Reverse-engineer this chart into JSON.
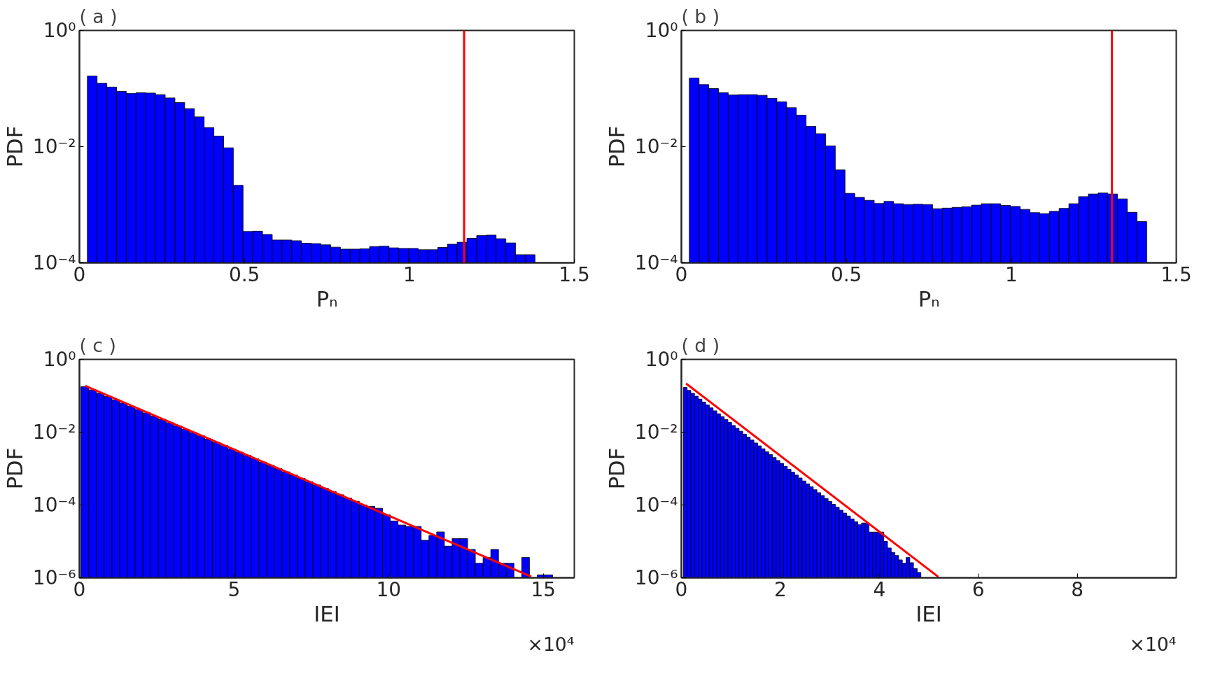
{
  "chart_data": [
    {
      "type": "histogram",
      "title": "( a )",
      "xlabel": "Pₙ",
      "ylabel": "PDF",
      "color": "#0000ff",
      "log": "y",
      "bins": [
        0.024,
        0.0535,
        0.083,
        0.1125,
        0.142,
        0.1715,
        0.201,
        0.2305,
        0.26,
        0.2895,
        0.319,
        0.3485,
        0.378,
        0.4075,
        0.437,
        0.4665,
        0.496,
        0.5255,
        0.555,
        0.5845,
        0.614,
        0.6435,
        0.673,
        0.7025,
        0.732,
        0.7615,
        0.791,
        0.8205,
        0.85,
        0.8795,
        0.909,
        0.9385,
        0.968,
        0.9975,
        1.027,
        1.0565,
        1.086,
        1.1155,
        1.145,
        1.1745,
        1.204,
        1.2335,
        1.263,
        1.2925,
        1.322,
        1.3515,
        1.381
      ],
      "values": [
        0.164,
        0.123,
        0.106,
        0.0893,
        0.0826,
        0.0848,
        0.0837,
        0.0785,
        0.069,
        0.0575,
        0.0451,
        0.0326,
        0.0213,
        0.0152,
        0.00955,
        0.00216,
        0.000346,
        0.00035,
        0.000308,
        0.000247,
        0.000247,
        0.00024,
        0.000217,
        0.000214,
        0.000204,
        0.000186,
        0.000172,
        0.000172,
        0.000174,
        0.000191,
        0.000193,
        0.000181,
        0.000177,
        0.000177,
        0.000168,
        0.000168,
        0.000184,
        0.000209,
        0.000226,
        0.000264,
        0.000296,
        0.0003,
        0.00026,
        0.00022,
        0.000138,
        0.000138
      ],
      "xlim": [
        0,
        1.5
      ],
      "xticks": [
        0,
        0.5,
        1,
        1.5
      ],
      "ylim": [
        0.0001,
        1
      ],
      "yticks": [
        {
          "value": 0.0001,
          "label": "10⁻⁴"
        },
        {
          "value": 0.01,
          "label": "10⁻²"
        },
        {
          "value": 1,
          "label": "10⁰"
        }
      ],
      "ref_lines": [
        {
          "axis": "x",
          "value": 1.166,
          "color": "#ff0000"
        }
      ]
    },
    {
      "type": "histogram",
      "title": "( b )",
      "xlabel": "Pₙ",
      "ylabel": "PDF",
      "color": "#0000ff",
      "log": "y",
      "bins": [
        0.024,
        0.0535,
        0.083,
        0.1125,
        0.142,
        0.1715,
        0.201,
        0.2305,
        0.26,
        0.2895,
        0.319,
        0.3485,
        0.378,
        0.4075,
        0.437,
        0.4665,
        0.496,
        0.5255,
        0.555,
        0.5845,
        0.614,
        0.6435,
        0.673,
        0.7025,
        0.732,
        0.7615,
        0.791,
        0.8205,
        0.85,
        0.8795,
        0.909,
        0.9385,
        0.968,
        0.9975,
        1.027,
        1.0565,
        1.086,
        1.1155,
        1.145,
        1.1745,
        1.204,
        1.2335,
        1.263,
        1.2925,
        1.322,
        1.3515,
        1.381,
        1.4105
      ],
      "values": [
        0.152,
        0.117,
        0.1,
        0.0848,
        0.0775,
        0.0785,
        0.0785,
        0.0765,
        0.068,
        0.059,
        0.0468,
        0.0348,
        0.0224,
        0.0167,
        0.0103,
        0.00397,
        0.00157,
        0.00134,
        0.00119,
        0.00105,
        0.00114,
        0.00104,
        0.00101,
        0.00102,
        0.00101,
        0.000854,
        0.000875,
        0.0009,
        0.000923,
        0.000984,
        0.00104,
        0.00104,
        0.00097,
        0.000935,
        0.000832,
        0.000731,
        0.000703,
        0.000769,
        0.000865,
        0.00104,
        0.00138,
        0.00153,
        0.00159,
        0.00153,
        0.00126,
        0.000741,
        0.000515
      ],
      "xlim": [
        0,
        1.5
      ],
      "xticks": [
        0,
        0.5,
        1,
        1.5
      ],
      "ylim": [
        0.0001,
        1
      ],
      "yticks": [
        {
          "value": 0.0001,
          "label": "10⁻⁴"
        },
        {
          "value": 0.01,
          "label": "10⁻²"
        },
        {
          "value": 1,
          "label": "10⁰"
        }
      ],
      "ref_lines": [
        {
          "axis": "x",
          "value": 1.305,
          "color": "#ff0000"
        }
      ]
    },
    {
      "type": "histogram",
      "title": "( c )",
      "xlabel": "IEI",
      "ylabel": "PDF",
      "color": "#0000ff",
      "log": "y",
      "annotations": [
        "×10⁴"
      ],
      "bins": [
        0.05,
        0.3,
        0.55,
        0.8,
        1.05,
        1.3,
        1.55,
        1.8,
        2.05,
        2.3,
        2.55,
        2.8,
        3.05,
        3.3,
        3.55,
        3.8,
        4.05,
        4.3,
        4.55,
        4.8,
        5.05,
        5.3,
        5.55,
        5.8,
        6.05,
        6.3,
        6.55,
        6.8,
        7.05,
        7.3,
        7.55,
        7.8,
        8.05,
        8.3,
        8.55,
        8.8,
        9.05,
        9.3,
        9.55,
        9.8,
        10.05,
        10.3,
        10.55,
        10.8,
        11.05,
        11.3,
        11.55,
        11.8,
        12.05,
        12.3,
        12.55,
        12.8,
        13.05,
        13.3,
        13.55,
        13.8,
        14.05,
        14.3,
        14.55,
        14.8,
        15.05,
        15.3
      ],
      "values": [
        0.178,
        0.145,
        0.117,
        0.0955,
        0.0776,
        0.0631,
        0.0513,
        0.0417,
        0.0339,
        0.0275,
        0.0224,
        0.0182,
        0.0148,
        0.012,
        0.00977,
        0.00794,
        0.00646,
        0.00525,
        0.00427,
        0.00347,
        0.00282,
        0.00229,
        0.00186,
        0.00151,
        0.00123,
        0.001,
        0.000813,
        0.000661,
        0.000537,
        0.000437,
        0.000355,
        0.000288,
        0.000234,
        0.000191,
        0.000155,
        0.000126,
        0.0001,
        9.12e-05,
        8.13e-05,
        5.37e-05,
        3.63e-05,
        2.82e-05,
        2.57e-05,
        2.57e-05,
        1.07e-05,
        1.45e-05,
        1.82e-05,
        7.4e-06,
        1.2e-05,
        1.2e-05,
        6e-06,
        2.5e-06,
        3.6e-06,
        6e-06,
        2.5e-06,
        2.5e-06,
        null,
        3.6e-06,
        null,
        1.2e-06,
        1.2e-06
      ],
      "series": [
        {
          "type": "line",
          "color": "#ff0000",
          "x": [
            0.19,
            14.61
          ],
          "values": [
            0.186,
            1.07e-06
          ]
        }
      ],
      "xlim": [
        0,
        16
      ],
      "xticks": [
        0,
        5,
        10,
        15
      ],
      "ylim": [
        1e-06,
        1
      ],
      "yticks": [
        {
          "value": 1e-06,
          "label": "10⁻⁶"
        },
        {
          "value": 0.0001,
          "label": "10⁻⁴"
        },
        {
          "value": 0.01,
          "label": "10⁻²"
        },
        {
          "value": 1,
          "label": "10⁰"
        }
      ]
    },
    {
      "type": "histogram",
      "title": "( d )",
      "xlabel": "IEI",
      "ylabel": "PDF",
      "color": "#0000ff",
      "log": "y",
      "annotations": [
        "×10⁴"
      ],
      "bins": [
        0.04,
        0.115,
        0.19,
        0.265,
        0.34,
        0.415,
        0.49,
        0.565,
        0.64,
        0.715,
        0.79,
        0.865,
        0.94,
        1.015,
        1.09,
        1.165,
        1.24,
        1.315,
        1.39,
        1.465,
        1.54,
        1.615,
        1.69,
        1.765,
        1.84,
        1.915,
        1.99,
        2.065,
        2.14,
        2.215,
        2.29,
        2.365,
        2.44,
        2.515,
        2.59,
        2.665,
        2.74,
        2.815,
        2.89,
        2.965,
        3.04,
        3.115,
        3.19,
        3.265,
        3.34,
        3.415,
        3.49,
        3.565,
        3.64,
        3.715,
        3.79,
        3.865,
        3.94,
        4.015,
        4.09,
        4.165,
        4.24,
        4.315,
        4.39,
        4.465,
        4.54,
        4.615,
        4.69,
        4.765,
        4.84
      ],
      "values": [
        0.17,
        0.141,
        0.117,
        0.0975,
        0.0811,
        0.0673,
        0.056,
        0.0466,
        0.0387,
        0.0321,
        0.0267,
        0.0222,
        0.0185,
        0.0153,
        0.0128,
        0.0106,
        0.00881,
        0.00733,
        0.0061,
        0.00506,
        0.00421,
        0.0035,
        0.0029,
        0.00242,
        0.00201,
        0.00167,
        0.00139,
        0.00115,
        0.000959,
        0.000796,
        0.000662,
        0.000551,
        0.000457,
        0.00038,
        0.000316,
        0.000262,
        0.000218,
        0.000182,
        0.000151,
        0.000125,
        0.000104,
        8.67e-05,
        7.2e-05,
        5.98e-05,
        4.98e-05,
        4.13e-05,
        3.44e-05,
        2.86e-05,
        3.2e-05,
        3.2e-05,
        1.8e-05,
        1.8e-05,
        1.8e-05,
        1.8e-05,
        1e-05,
        6.6e-06,
        5e-06,
        4.1e-06,
        3.1e-06,
        2.5e-06,
        3.6e-06,
        2.6e-06,
        1.8e-06,
        1.4e-06
      ],
      "series": [
        {
          "type": "line",
          "color": "#ff0000",
          "x": [
            0.095,
            5.19
          ],
          "values": [
            0.217,
            1.06e-06
          ]
        }
      ],
      "xlim": [
        0,
        10
      ],
      "xticks": [
        0,
        2,
        4,
        6,
        8
      ],
      "ylim": [
        1e-06,
        1
      ],
      "yticks": [
        {
          "value": 1e-06,
          "label": "10⁻⁶"
        },
        {
          "value": 0.0001,
          "label": "10⁻⁴"
        },
        {
          "value": 0.01,
          "label": "10⁻²"
        },
        {
          "value": 1,
          "label": "10⁰"
        }
      ]
    }
  ]
}
